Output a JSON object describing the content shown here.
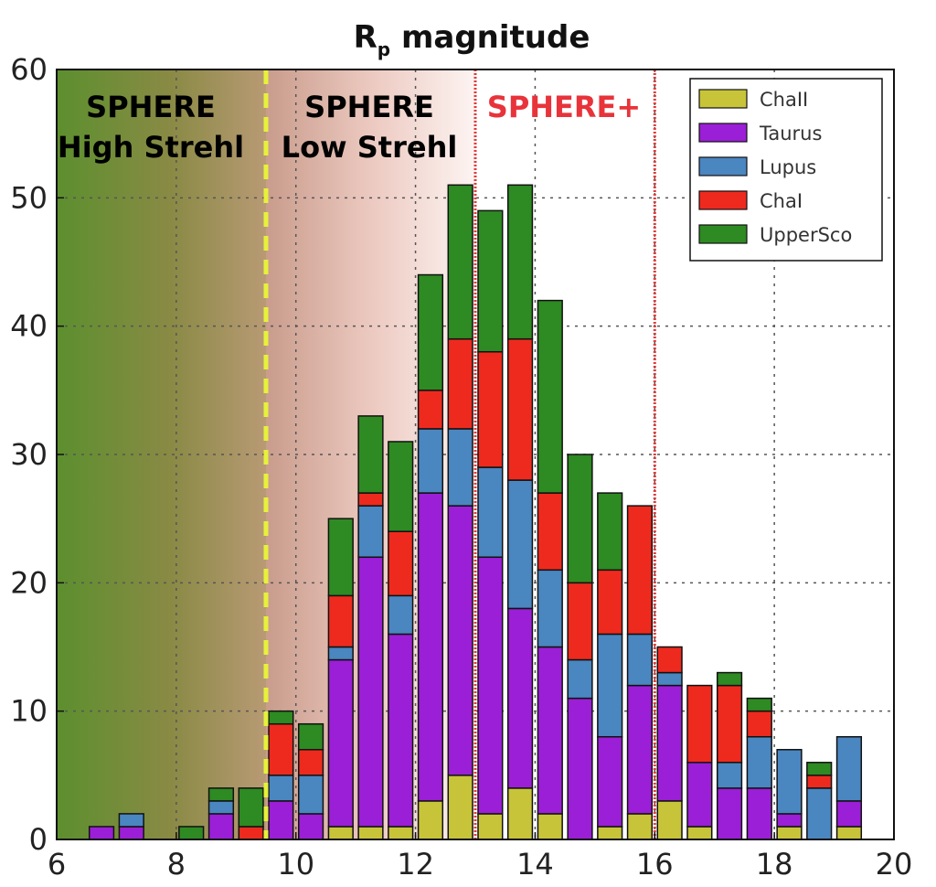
{
  "chart_data": {
    "type": "bar",
    "stacked": true,
    "title": "R",
    "title_subscript": "p",
    "title_suffix": " magnitude",
    "xlim": [
      6,
      20
    ],
    "ylim": [
      0,
      60
    ],
    "xticks": [
      "6",
      "8",
      "10",
      "12",
      "14",
      "16",
      "18",
      "20"
    ],
    "yticks": [
      "0",
      "10",
      "20",
      "30",
      "40",
      "50",
      "60"
    ],
    "grid": true,
    "legend_position": "top-right",
    "bin_width": 0.5,
    "bin_centers": [
      6.75,
      7.25,
      7.75,
      8.25,
      8.75,
      9.25,
      9.75,
      10.25,
      10.75,
      11.25,
      11.75,
      12.25,
      12.75,
      13.25,
      13.75,
      14.25,
      14.75,
      15.25,
      15.75,
      16.25,
      16.75,
      17.25,
      17.75,
      18.25,
      18.75,
      19.25
    ],
    "series": [
      {
        "name": "ChaII",
        "color": "#c8c43a",
        "values": [
          0,
          0,
          0,
          0,
          0,
          0,
          0,
          0,
          1,
          1,
          1,
          3,
          5,
          2,
          4,
          2,
          0,
          1,
          2,
          3,
          1,
          0,
          0,
          1,
          0,
          1
        ]
      },
      {
        "name": "Taurus",
        "color": "#9b1fd6",
        "values": [
          1,
          1,
          0,
          0,
          2,
          0,
          3,
          2,
          13,
          21,
          15,
          24,
          21,
          20,
          14,
          13,
          11,
          7,
          10,
          9,
          5,
          4,
          4,
          1,
          0,
          2
        ]
      },
      {
        "name": "Lupus",
        "color": "#4a86c0",
        "values": [
          0,
          1,
          0,
          0,
          1,
          0,
          2,
          3,
          1,
          4,
          3,
          5,
          6,
          7,
          10,
          6,
          3,
          8,
          4,
          1,
          0,
          2,
          4,
          5,
          4,
          5
        ]
      },
      {
        "name": "ChaI",
        "color": "#ee2a1e",
        "values": [
          0,
          0,
          0,
          0,
          0,
          1,
          4,
          2,
          4,
          1,
          5,
          3,
          7,
          9,
          11,
          6,
          6,
          5,
          10,
          2,
          6,
          6,
          2,
          0,
          1,
          0
        ]
      },
      {
        "name": "UpperSco",
        "color": "#2e8a22",
        "values": [
          0,
          0,
          0,
          1,
          1,
          3,
          1,
          2,
          6,
          6,
          7,
          9,
          12,
          11,
          12,
          15,
          10,
          6,
          0,
          0,
          0,
          1,
          1,
          0,
          1,
          0
        ]
      }
    ],
    "regions": [
      {
        "label_line1": "SPHERE",
        "label_line2": "High Strehl",
        "from": 6,
        "to": 9.5,
        "color": "#000000"
      },
      {
        "label_line1": "SPHERE",
        "label_line2": "Low Strehl",
        "from": 9.5,
        "to": 13,
        "color": "#000000"
      },
      {
        "label_line1": "SPHERE+",
        "label_line2": "",
        "from": 13,
        "to": 16,
        "color": "#e8333a"
      }
    ],
    "vlines": [
      {
        "x": 9.5,
        "color": "#e6f23a",
        "style": "dashed"
      },
      {
        "x": 13,
        "color": "#e23a3a",
        "style": "dotted"
      },
      {
        "x": 16,
        "color": "#e23a3a",
        "style": "dotted"
      }
    ]
  }
}
